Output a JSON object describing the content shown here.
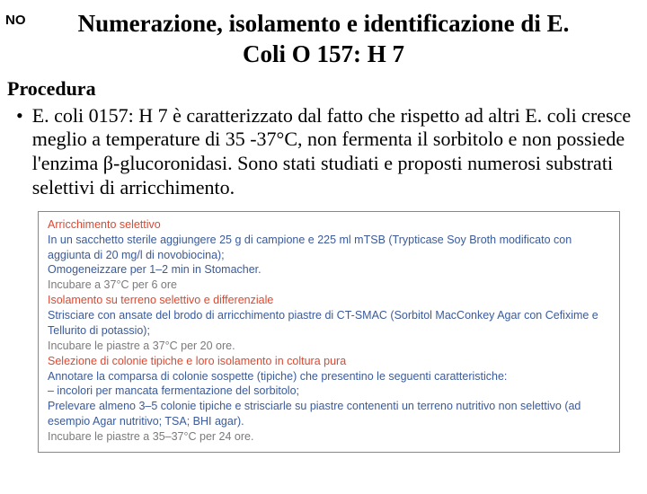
{
  "no_label": "NO",
  "title_line1": "Numerazione, isolamento e identificazione di E.",
  "title_line2": "Coli O 157: H 7",
  "procedura_label": "Procedura",
  "bullet_marker": "•",
  "bullet_text": "E. coli 0157: H 7 è caratterizzato dal fatto che rispetto ad altri E. coli cresce meglio a temperature di 35 -37°C, non fermenta il sorbitolo e non possiede l'enzima β-glucoronidasi. Sono stati studiati e proposti numerosi substrati selettivi di arricchimento.",
  "box": {
    "h1": "Arricchimento selettivo",
    "l1": "In un sacchetto sterile aggiungere 25 g di campione e 225 ml mTSB (Trypticase Soy Broth modificato con aggiunta di 20 mg/l di novobiocina);",
    "l2": "Omogeneizzare per 1–2 min in Stomacher.",
    "l3": "Incubare a 37°C per 6 ore",
    "h2": "Isolamento su terreno selettivo e differenziale",
    "l4": "Strisciare con ansate del brodo di arricchimento piastre di CT-SMAC (Sorbitol MacConkey Agar con Cefixime e Tellurito di potassio);",
    "l5": "Incubare le piastre a 37°C per 20 ore.",
    "h3": "Selezione di colonie tipiche e loro isolamento in coltura pura",
    "l6": "Annotare la comparsa di colonie sospette (tipiche) che presentino le seguenti caratteristiche:",
    "l7": "– incolori per mancata fermentazione del sorbitolo;",
    "l8": "Prelevare almeno 3–5 colonie tipiche e strisciarle su piastre contenenti un terreno nutritivo non selettivo (ad esempio Agar nutritivo; TSA; BHI agar).",
    "l9": "Incubare le piastre a 35–37°C per 24 ore."
  },
  "colors": {
    "red": "#d84a33",
    "blue": "#3a5a9a",
    "gray": "#7a7a7a"
  }
}
